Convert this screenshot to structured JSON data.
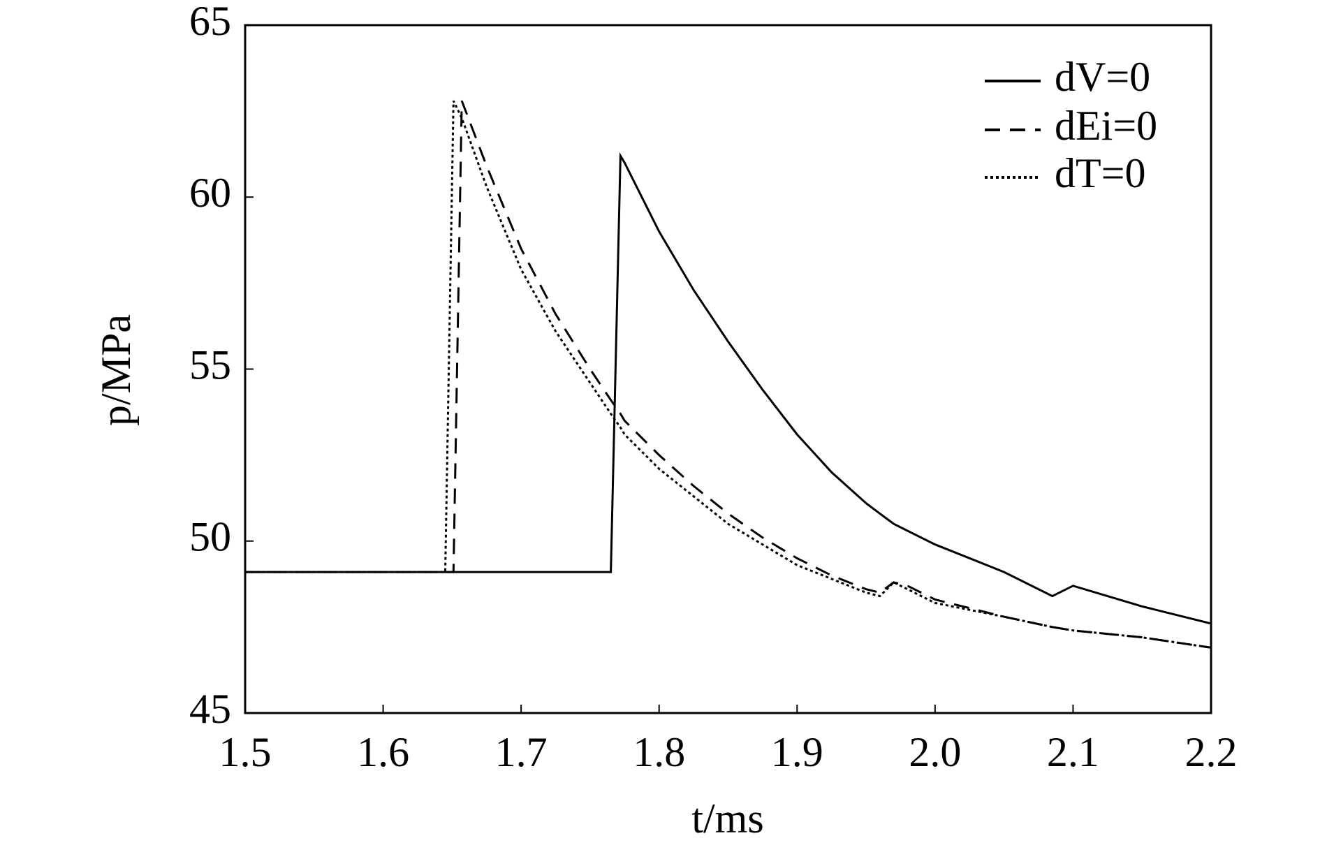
{
  "chart_data": {
    "type": "line",
    "x_label": "t/ms",
    "y_label": "p/MPa",
    "x": [
      1.5,
      1.645,
      1.651,
      1.657,
      1.675,
      1.7,
      1.725,
      1.75,
      1.765,
      1.772,
      1.775,
      1.8,
      1.825,
      1.85,
      1.875,
      1.9,
      1.925,
      1.95,
      1.96,
      1.97,
      1.98,
      2.0,
      2.05,
      2.085,
      2.1,
      2.15,
      2.2
    ],
    "series": [
      {
        "name": "dV=0",
        "color": "#000000",
        "dash": "solid",
        "values": [
          49.1,
          49.1,
          49.1,
          49.1,
          49.1,
          49.1,
          49.1,
          49.1,
          49.1,
          61.2,
          61.0,
          59.0,
          57.3,
          55.8,
          54.4,
          53.1,
          52.0,
          51.1,
          50.8,
          50.5,
          50.3,
          49.9,
          49.1,
          48.4,
          48.7,
          48.1,
          47.6
        ]
      },
      {
        "name": "dEi=0",
        "color": "#000000",
        "dash": "dashed",
        "values": [
          49.1,
          49.1,
          49.1,
          62.8,
          60.9,
          58.5,
          56.6,
          55.0,
          54.1,
          53.7,
          53.5,
          52.5,
          51.6,
          50.8,
          50.1,
          49.5,
          49.0,
          48.6,
          48.5,
          48.8,
          48.7,
          48.3,
          47.8,
          47.5,
          47.4,
          47.2,
          46.9
        ]
      },
      {
        "name": "dT=0",
        "color": "#000000",
        "dash": "dotted",
        "values": [
          49.1,
          49.1,
          62.8,
          62.3,
          60.3,
          57.9,
          56.1,
          54.6,
          53.7,
          53.3,
          53.1,
          52.1,
          51.3,
          50.5,
          49.9,
          49.3,
          48.9,
          48.5,
          48.4,
          48.8,
          48.6,
          48.2,
          47.8,
          47.5,
          47.4,
          47.2,
          46.9
        ]
      }
    ],
    "xlim": [
      1.5,
      2.2
    ],
    "xticks": [
      1.5,
      1.6,
      1.7,
      1.8,
      1.9,
      {
        "value": 2,
        "label": "2.0"
      },
      2.1,
      2.2
    ],
    "ylim": [
      45,
      65
    ],
    "yticks": [
      45,
      50,
      55,
      60,
      65
    ],
    "grid": false,
    "legend": "upper right"
  }
}
